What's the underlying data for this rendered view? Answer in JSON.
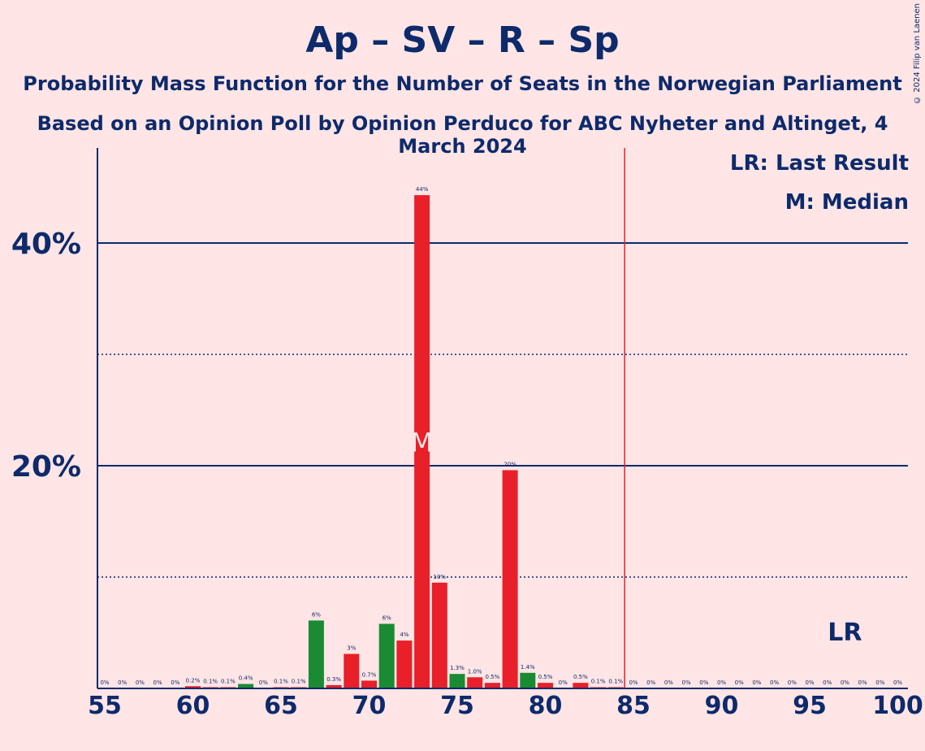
{
  "title": "Ap – SV – R – Sp",
  "subtitle": "Probability Mass Function for the Number of Seats in the Norwegian Parliament",
  "source": "Based on an Opinion Poll by Opinion Perduco for ABC Nyheter and Altinget, 4 March 2024",
  "copyright": "© 2024 Filip van Laenen",
  "legend": {
    "last_result": "LR: Last Result",
    "median": "M: Median"
  },
  "chart_data": {
    "type": "bar",
    "x": [
      55,
      56,
      57,
      58,
      59,
      60,
      61,
      62,
      63,
      64,
      65,
      66,
      67,
      68,
      69,
      70,
      71,
      72,
      73,
      74,
      75,
      76,
      77,
      78,
      79,
      80,
      81,
      82,
      83,
      84,
      85,
      86,
      87,
      88,
      89,
      90,
      91,
      92,
      93,
      94,
      95,
      96,
      97,
      98,
      99,
      100
    ],
    "values": [
      0,
      0,
      0,
      0,
      0,
      0.2,
      0.1,
      0.1,
      0.4,
      0,
      0.1,
      0.1,
      6.1,
      0.3,
      3.1,
      0.7,
      5.8,
      4.3,
      44.3,
      9.5,
      1.3,
      1.0,
      0.5,
      19.6,
      1.4,
      0.5,
      0,
      0.5,
      0.1,
      0.1,
      0,
      0,
      0,
      0,
      0,
      0,
      0,
      0,
      0,
      0,
      0,
      0,
      0,
      0,
      0,
      0
    ],
    "labels": [
      "0%",
      "0%",
      "0%",
      "0%",
      "0%",
      "0.2%",
      "0.1%",
      "0.1%",
      "0.4%",
      "0%",
      "0.1%",
      "0.1%",
      "6%",
      "0.3%",
      "3%",
      "0.7%",
      "6%",
      "4%",
      "44%",
      "10%",
      "1.3%",
      "1.0%",
      "0.5%",
      "20%",
      "1.4%",
      "0.5%",
      "0%",
      "0.5%",
      "0.1%",
      "0.1%",
      "0%",
      "0%",
      "0%",
      "0%",
      "0%",
      "0%",
      "0%",
      "0%",
      "0%",
      "0%",
      "0%",
      "0%",
      "0%",
      "0%",
      "0%",
      "0%"
    ],
    "colors": [
      "#E8202A",
      "#E8202A",
      "#E8202A",
      "#E8202A",
      "#E8202A",
      "#E8202A",
      "#E8202A",
      "#E8202A",
      "#1A8A33",
      "#E8202A",
      "#E8202A",
      "#E8202A",
      "#1A8A33",
      "#E8202A",
      "#E8202A",
      "#E8202A",
      "#1A8A33",
      "#E8202A",
      "#E8202A",
      "#E8202A",
      "#1A8A33",
      "#E8202A",
      "#E8202A",
      "#E8202A",
      "#1A8A33",
      "#E8202A",
      "#E8202A",
      "#E8202A",
      "#E8202A",
      "#E8202A",
      "#E8202A",
      "#E8202A",
      "#E8202A",
      "#E8202A",
      "#E8202A",
      "#E8202A",
      "#E8202A",
      "#E8202A",
      "#E8202A",
      "#E8202A",
      "#E8202A",
      "#E8202A",
      "#E8202A",
      "#E8202A",
      "#E8202A",
      "#E8202A"
    ],
    "x_ticks": [
      55,
      60,
      65,
      70,
      75,
      80,
      85,
      90,
      95,
      100
    ],
    "y_ticks_labeled": [
      {
        "value": 20,
        "label": "20%"
      },
      {
        "value": 40,
        "label": "40%"
      }
    ],
    "y_ticks_dotted": [
      10,
      30
    ],
    "ylim": [
      0,
      48
    ],
    "majority_line": 84.5,
    "median": 73,
    "median_marker": "M",
    "last_result": 97,
    "last_result_marker": "LR",
    "axis_color": "#0D2A6B",
    "majority_color": "#E8202A"
  }
}
